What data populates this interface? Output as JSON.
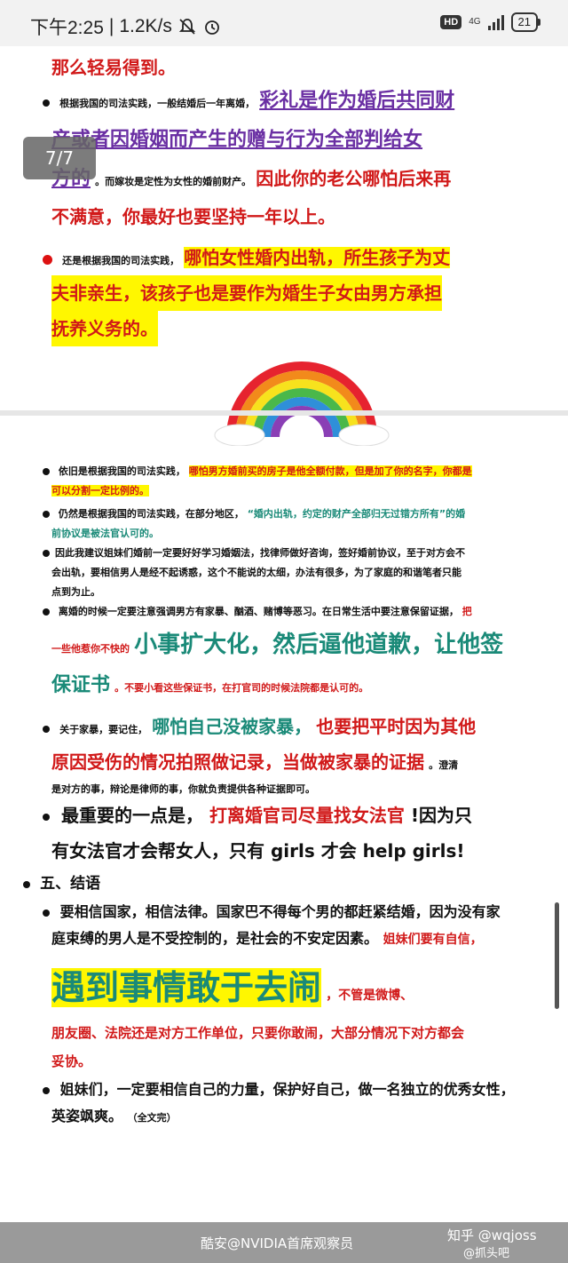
{
  "status": {
    "time": "下午2:25",
    "speed": "1.2K/s",
    "hd": "HD",
    "network": "4G",
    "battery": "21"
  },
  "viewer": {
    "page_counter": "7/7"
  },
  "article": {
    "line1": "那么轻易得到。",
    "p1_small": "根据我国的司法实践，一般结婚后一年离婚，",
    "p1_big_a": "彩礼是作为婚后共同财",
    "p1_big_b": "产或者因婚姻而产生的赠与行为全部判给女",
    "p1_big_c": "方的",
    "p1_small_b": "。而嫁妆是定性为女性的婚前财产。",
    "p1_red_a": "因此你的老公哪怕后来再",
    "p1_red_b": "不满意，你最好也要坚持一年以上。",
    "p2_small": "还是根据我国的司法实践，",
    "p2_a": "哪怕女性婚内出轨，所生孩子为丈",
    "p2_b": "夫非亲生，该孩子也是要作为婚生子女由男方承担",
    "p2_c": "抚养义务的。",
    "p3_small": "依旧是根据我国的司法实践，",
    "p3_hl": "哪怕男方婚前买的房子是他全额付款，但是加了你的名字，你都是",
    "p3_hl2": "可以分割一定比例的。",
    "p4_a": "仍然是根据我国的司法实践，在部分地区，",
    "p4_teal": "“婚内出轨，约定的财产全部归无过错方所有”的婚",
    "p4_b": "前协议是被法官认可的。",
    "p5_a": "因此我建议姐妹们婚前一定要好好学习婚姻法，找律师做好咨询，签好婚前协议，至于对方会不",
    "p5_b": "会出轨，要相信男人是经不起诱惑，这个不能说的太细，办法有很多，为了家庭的和谐笔者只能",
    "p5_c": "点到为止。",
    "p6_a": "离婚的时候一定要注意强调男方有家暴、酗酒、赌博等恶习。在日常生活中要注意保留证据，",
    "p6_red": "把",
    "p6_b": "一些他惹你不快的",
    "p6_big": "小事扩大化，然后逼他道歉，让他签",
    "p6_big2": "保证书",
    "p6_c": "。不要小看这些保证书，在打官司的时候法院都是认可的。",
    "p7_a": "关于家暴，要记住，",
    "p7_teal": "哪怕自己没被家暴，",
    "p7_red": "也要把平时因为其他",
    "p7_red2": "原因受伤的情况拍照做记录，当做被家暴的证据",
    "p7_b": "。澄清",
    "p7_c": "是对方的事，辩论是律师的事，你就负责提供各种证据即可。",
    "p8_a": "最重要的一点是，",
    "p8_red": "打离婚官司尽量找女法官",
    "p8_b": "!因为只",
    "p8_c": "有女法官才会帮女人，只有 girls 才会 help girls!",
    "section5": "五、结语",
    "p9_a": "要相信国家，相信法律。国家巴不得每个男的都赶紧结婚，因为没有家",
    "p9_b": "庭束缚的男人是不受控制的，是社会的不安定因素。",
    "p9_red": "姐妹们要有自信，",
    "p9_huge": "遇到事情敢于去闹",
    "p9_red2": "，不管是微博、",
    "p9_red3": "朋友圈、法院还是对方工作单位，只要你敢闹，大部分情况下对方都会",
    "p9_red4": "妥协。",
    "p10_a": "姐妹们，一定要相信自己的力量，保护好自己，做一名独立的优秀女性，",
    "p10_b": "英姿飒爽。",
    "p10_end": "（全文完）"
  },
  "footer": {
    "watermark_left": "酷安@NVIDIA首席观察员",
    "watermark_right": "知乎 @wqjoss",
    "watermark_right2": "@抓头吧"
  }
}
